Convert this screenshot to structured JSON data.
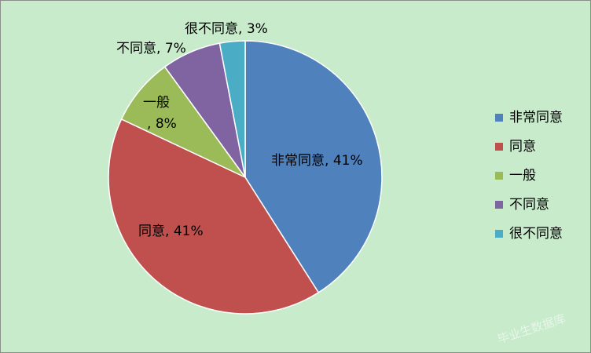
{
  "chart_data": {
    "type": "pie",
    "categories": [
      "非常同意",
      "同意",
      "一般",
      "不同意",
      "很不同意"
    ],
    "values": [
      41,
      41,
      8,
      7,
      3
    ],
    "unit": "%",
    "colors": [
      "#4f81bd",
      "#c0504d",
      "#9bbb59",
      "#8064a2",
      "#4bacc6"
    ],
    "title": "",
    "legend_position": "right",
    "data_labels": [
      {
        "name": "非常同意",
        "value": "41%"
      },
      {
        "name": "同意",
        "value": "41%"
      },
      {
        "name": "一般",
        "value": "8%"
      },
      {
        "name": "不同意",
        "value": "7%"
      },
      {
        "name": "很不同意",
        "value": "3%"
      }
    ]
  },
  "watermark": {
    "text": "毕业生数据库"
  }
}
